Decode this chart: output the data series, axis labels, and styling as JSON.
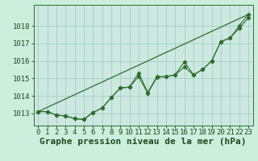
{
  "title": "Graphe pression niveau de la mer (hPa)",
  "background_color": "#cceedd",
  "plot_bg_color": "#cde8e0",
  "grid_color": "#99ccbb",
  "line_color": "#2d6e2d",
  "xlim": [
    -0.5,
    23.5
  ],
  "ylim": [
    1012.3,
    1019.2
  ],
  "yticks": [
    1013,
    1014,
    1015,
    1016,
    1017,
    1018
  ],
  "xticks": [
    0,
    1,
    2,
    3,
    4,
    5,
    6,
    7,
    8,
    9,
    10,
    11,
    12,
    13,
    14,
    15,
    16,
    17,
    18,
    19,
    20,
    21,
    22,
    23
  ],
  "series_markers": [
    [
      1013.1,
      1013.1,
      1012.9,
      1012.85,
      1012.7,
      1012.65,
      1013.05,
      1013.3,
      1013.9,
      1014.45,
      1014.5,
      1015.3,
      1014.2,
      1015.1,
      1015.1,
      1015.2,
      1015.95,
      1015.2,
      1015.5,
      1016.0,
      1017.1,
      1017.3,
      1018.0,
      1018.65
    ],
    [
      1013.1,
      1013.1,
      1012.9,
      1012.85,
      1012.7,
      1012.65,
      1013.05,
      1013.3,
      1013.9,
      1014.45,
      1014.5,
      1015.1,
      1014.15,
      1015.05,
      1015.1,
      1015.2,
      1015.65,
      1015.2,
      1015.5,
      1016.0,
      1017.1,
      1017.3,
      1017.85,
      1018.45
    ]
  ],
  "series_line": [
    1013.1,
    1018.65
  ],
  "series_line_x": [
    0,
    23
  ],
  "title_fontsize": 8,
  "tick_fontsize": 6.5
}
